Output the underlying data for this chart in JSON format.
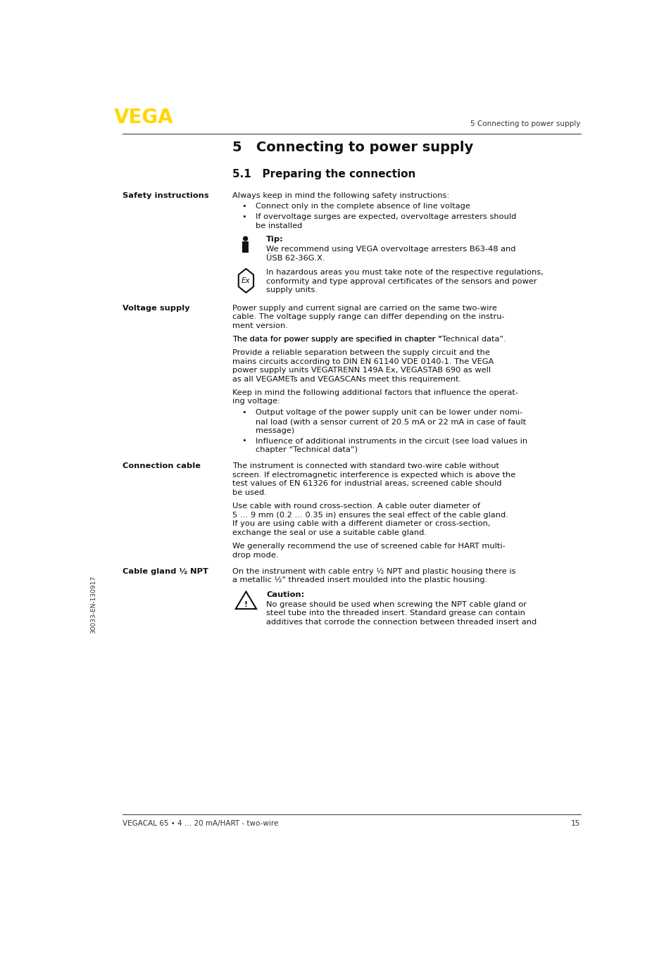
{
  "page_width": 9.54,
  "page_height": 13.54,
  "bg_color": "#ffffff",
  "vega_color": "#FFD700",
  "header_right_text": "5 Connecting to power supply",
  "footer_left_text": "VEGACAL 65 • 4 … 20 mA/HART - two-wire",
  "footer_right_text": "15",
  "sidebar_text": "30033-EN-130917",
  "chapter_title": "5   Connecting to power supply",
  "section_title": "5.1   Preparing the connection"
}
